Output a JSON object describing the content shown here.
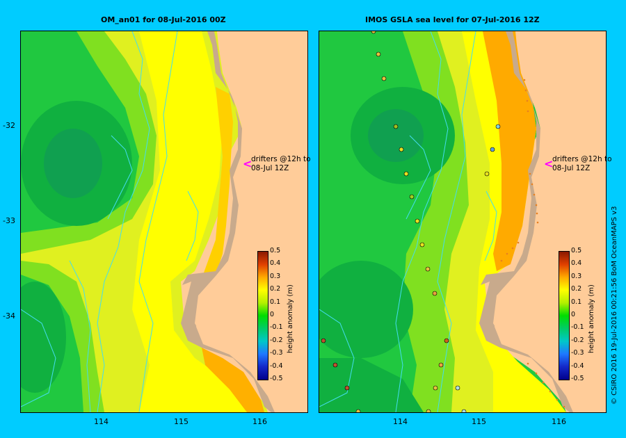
{
  "panels": [
    {
      "title": "OM_an01  for 08-Jul-2016 00Z"
    },
    {
      "title": "IMOS  GSLA sea level   for 07-Jul-2016 12Z"
    }
  ],
  "axes": {
    "x_ticks": [
      "114",
      "115",
      "116"
    ],
    "y_ticks": [
      "-32",
      "-33",
      "-34"
    ]
  },
  "annotation": {
    "line1": "drifters @12h to",
    "line2": "08-Jul 12Z"
  },
  "colorbar": {
    "label": "height anomaly (m)",
    "ticks": [
      "0.5",
      "0.4",
      "0.3",
      "0.2",
      "0.1",
      "0",
      "-0.1",
      "-0.2",
      "-0.3",
      "-0.4",
      "-0.5"
    ]
  },
  "credit": "© CSIRO 2016   19-Jul-2016 00:21:56 BoM OceanMAPS v3",
  "colors": {
    "background": "#00ccff",
    "land": "#ffcc99",
    "coast": "#c8aa8c",
    "drifter_track": "#44ddee",
    "arrow": "#ff00ff"
  }
}
